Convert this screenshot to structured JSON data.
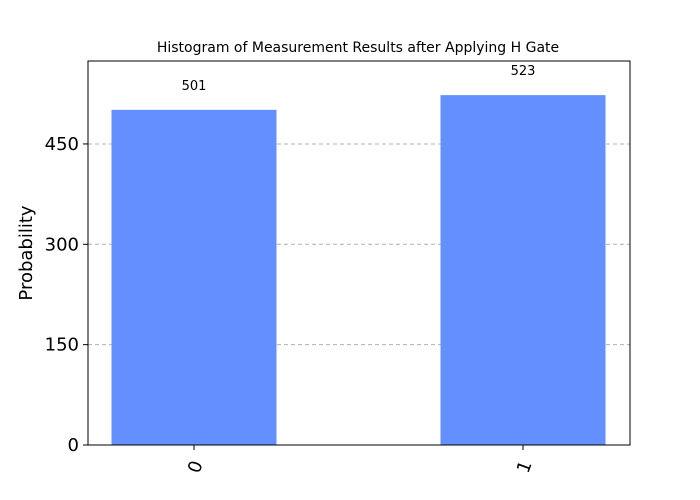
{
  "chart_data": {
    "type": "bar",
    "title": "Histogram of Measurement Results after Applying H Gate",
    "xlabel": "",
    "ylabel": "Probability",
    "categories": [
      "0",
      "1"
    ],
    "values": [
      501,
      523
    ],
    "data_labels": [
      "501",
      "523"
    ],
    "yticks": [
      0,
      150,
      300,
      450
    ],
    "ytick_labels": [
      "0",
      "150",
      "300",
      "450"
    ],
    "ylim": [
      0,
      574
    ],
    "grid": "horizontal dashed",
    "bar_color": "#648fff",
    "legend": "none"
  }
}
